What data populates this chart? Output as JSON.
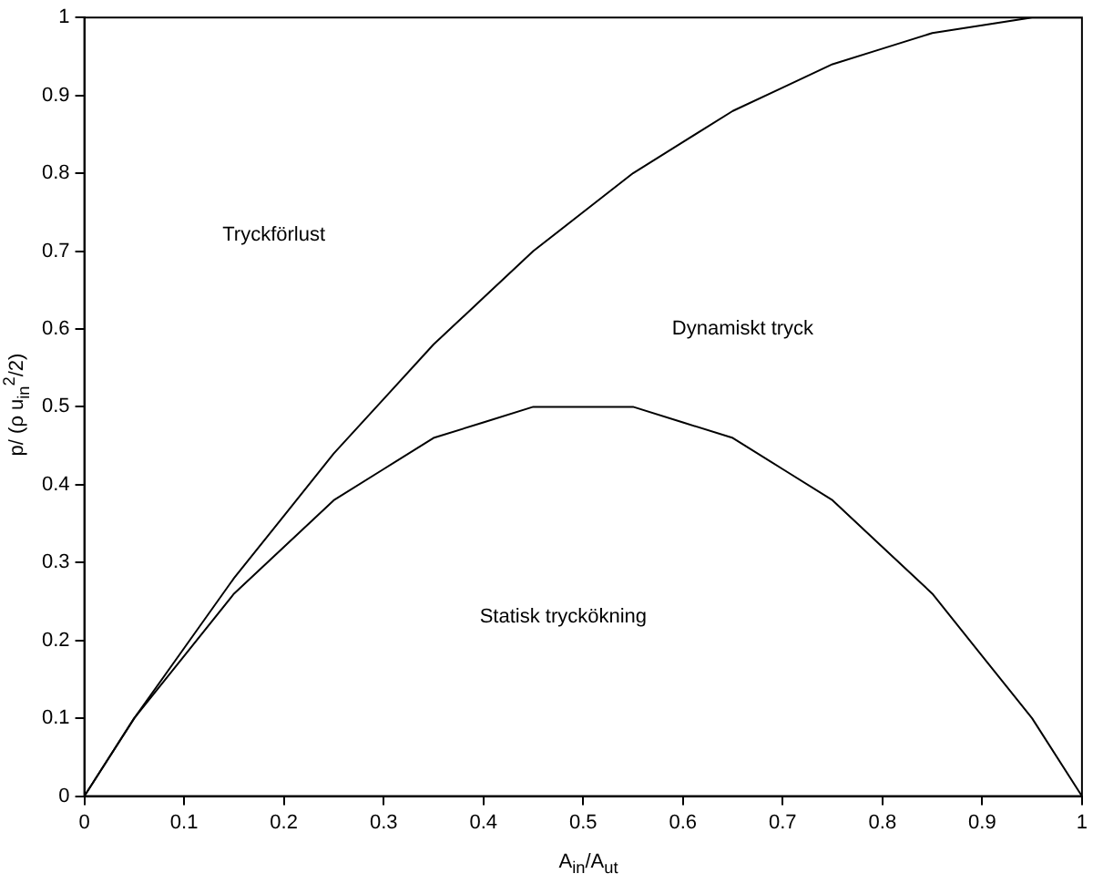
{
  "chart_data": {
    "type": "line",
    "xlabel": "A$_{in}$/A$_{ut}$",
    "ylabel": "p/ (ρ u$_{in}$$^{2}$/2)",
    "x": [
      0,
      0.05,
      0.1,
      0.15,
      0.2,
      0.25,
      0.3,
      0.35,
      0.4,
      0.45,
      0.5,
      0.55,
      0.6,
      0.65,
      0.7,
      0.75,
      0.8,
      0.85,
      0.9,
      0.95,
      1
    ],
    "series": [
      {
        "color": "#000000",
        "values": [
          0,
          0.1,
          0.19,
          0.28,
          0.36,
          0.44,
          0.51,
          0.58,
          0.64,
          0.7,
          0.75,
          0.8,
          0.84,
          0.88,
          0.91,
          0.94,
          0.96,
          0.98,
          0.99,
          1,
          1
        ]
      },
      {
        "color": "#000000",
        "values": [
          0,
          0.1,
          0.18,
          0.26,
          0.32,
          0.38,
          0.42,
          0.46,
          0.48,
          0.5,
          0.5,
          0.5,
          0.48,
          0.46,
          0.42,
          0.38,
          0.32,
          0.26,
          0.18,
          0.1,
          0
        ]
      }
    ],
    "xlim": [
      0,
      1
    ],
    "ylim": [
      0,
      1
    ],
    "xticks": [
      0,
      0.1,
      0.2,
      0.3,
      0.4,
      0.5,
      0.6,
      0.7,
      0.8,
      0.9,
      1
    ],
    "yticks": [
      0,
      0.1,
      0.2,
      0.3,
      0.4,
      0.5,
      0.6,
      0.7,
      0.8,
      0.9,
      1
    ],
    "annotations": [
      "Tryckförlust",
      "Dynamiskt tryck",
      "Statisk tryckökning"
    ],
    "grid": false,
    "legend": false,
    "marker": "none",
    "line_style": "solid"
  }
}
